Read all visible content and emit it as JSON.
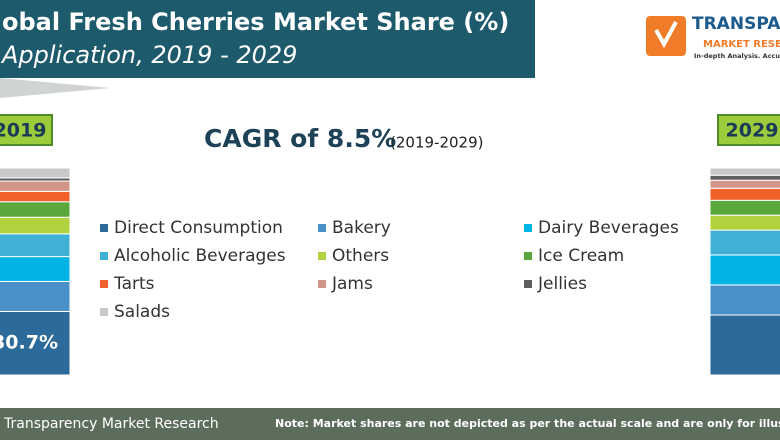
{
  "header": {
    "title": "obal Fresh Cherries Market Share (%)",
    "subtitle": "Application, 2019 - 2029"
  },
  "logo": {
    "name": "TRANSPAR",
    "tagline": "MARKET RESE",
    "motto": "In-depth Analysis. Accu"
  },
  "chart_data": {
    "type": "bar",
    "stacked": true,
    "annotation": "CAGR of 8.5%",
    "annotation_period": "(2019-2029)",
    "categories": [
      "2019",
      "2029"
    ],
    "series": [
      {
        "name": "Direct Consumption",
        "color": "#2b6a99",
        "values": [
          30.7,
          29
        ],
        "value_labels": [
          "30.7%",
          null
        ]
      },
      {
        "name": "Bakery",
        "color": "#4a90c8",
        "values": [
          14.5,
          14.5
        ]
      },
      {
        "name": "Dairy Beverages",
        "color": "#00b4e6",
        "values": [
          12,
          14.5
        ]
      },
      {
        "name": "Alcoholic Beverages",
        "color": "#40b0d6",
        "values": [
          11,
          12
        ]
      },
      {
        "name": "Others",
        "color": "#b0d23c",
        "values": [
          8,
          7.2
        ]
      },
      {
        "name": "Ice Cream",
        "color": "#5aa83c",
        "values": [
          7.5,
          7.2
        ]
      },
      {
        "name": "Tarts",
        "color": "#f0612a",
        "values": [
          5,
          5.8
        ]
      },
      {
        "name": "Jams",
        "color": "#d2958a",
        "values": [
          5,
          3.9
        ]
      },
      {
        "name": "Jellies",
        "color": "#5e5e5e",
        "values": [
          1.5,
          2.4
        ]
      },
      {
        "name": "Salads",
        "color": "#c8c8c8",
        "values": [
          4.8,
          3.5
        ]
      }
    ]
  },
  "footer": {
    "source": "Transparency Market Research",
    "note": "Note: Market shares are not depicted as per the actual scale and are only for illustration"
  }
}
